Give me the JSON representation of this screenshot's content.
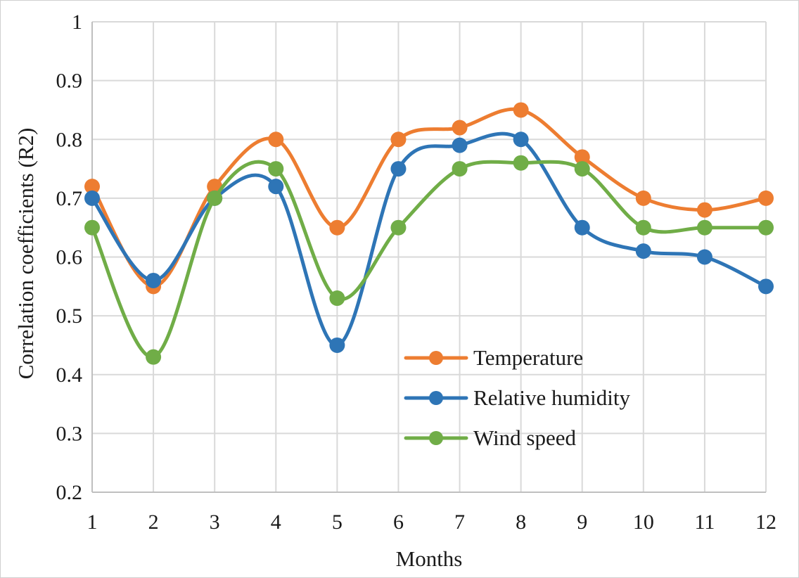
{
  "chart_data": {
    "type": "line",
    "title": "",
    "xlabel": "Months",
    "ylabel": "Correlation coefficients (R2)",
    "x": [
      1,
      2,
      3,
      4,
      5,
      6,
      7,
      8,
      9,
      10,
      11,
      12
    ],
    "ylim": [
      0.2,
      1
    ],
    "yticks": [
      "0.2",
      "0.3",
      "0.4",
      "0.5",
      "0.6",
      "0.7",
      "0.8",
      "0.9",
      "1"
    ],
    "grid": true,
    "legend_position": "bottom-right",
    "series": [
      {
        "name": "Temperature",
        "color": "#ED7D31",
        "values": [
          0.72,
          0.55,
          0.72,
          0.8,
          0.65,
          0.8,
          0.82,
          0.85,
          0.77,
          0.7,
          0.68,
          0.7
        ]
      },
      {
        "name": "Relative humidity",
        "color": "#2E75B6",
        "values": [
          0.7,
          0.56,
          0.7,
          0.72,
          0.45,
          0.75,
          0.79,
          0.8,
          0.65,
          0.61,
          0.6,
          0.55
        ]
      },
      {
        "name": "Wind speed",
        "color": "#70AD47",
        "values": [
          0.65,
          0.43,
          0.7,
          0.75,
          0.53,
          0.65,
          0.75,
          0.76,
          0.75,
          0.65,
          0.65,
          0.65
        ]
      }
    ]
  }
}
